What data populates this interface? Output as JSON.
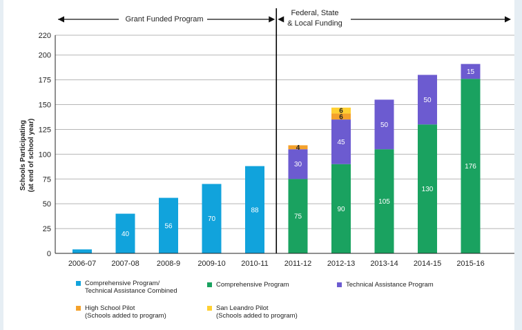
{
  "colors": {
    "comprehensive_ta_combined": "#11a3dc",
    "comprehensive_program": "#1aa260",
    "technical_assistance": "#6c5bd0",
    "high_school_pilot": "#f4a12b",
    "san_leandro_pilot": "#ffd032",
    "divider": "#000000",
    "grid": "#b5b5b5",
    "background_side": "#e6eef4"
  },
  "header": {
    "left_label": "Grant Funded Program",
    "right_label_line1": "Federal, State",
    "right_label_line2": "& Local Funding"
  },
  "legend": [
    {
      "key": "comprehensive_ta_combined",
      "label": "Comprehensive Program/\nTechnical Assistance Combined"
    },
    {
      "key": "comprehensive_program",
      "label": "Comprehensive Program"
    },
    {
      "key": "technical_assistance",
      "label": "Technical Assistance Program"
    },
    {
      "key": "high_school_pilot",
      "label": "High School Pilot\n(Schools added to program)"
    },
    {
      "key": "san_leandro_pilot",
      "label": "San Leandro Pilot\n(Schools added to program)"
    }
  ],
  "chart_data": {
    "type": "bar",
    "stacked": true,
    "ylabel_line1": "Schools Participating",
    "ylabel_line2": "(at end of school year)",
    "ylim": [
      0,
      220
    ],
    "yticks": [
      0,
      25,
      50,
      75,
      100,
      125,
      150,
      175,
      200,
      220
    ],
    "grid": true,
    "categories": [
      "2006-07",
      "2007-08",
      "2008-9",
      "2009-10",
      "2010-11",
      "2011-12",
      "2012-13",
      "2013-14",
      "2014-15",
      "2015-16"
    ],
    "series": [
      {
        "key": "comprehensive_ta_combined",
        "name": "Comprehensive Program/ Technical Assistance Combined",
        "values": [
          4,
          40,
          56,
          70,
          88,
          0,
          0,
          0,
          0,
          0
        ],
        "labels": [
          "",
          "40",
          "56",
          "70",
          "88",
          "",
          "",
          "",
          "",
          ""
        ]
      },
      {
        "key": "comprehensive_program",
        "name": "Comprehensive Program",
        "values": [
          0,
          0,
          0,
          0,
          0,
          75,
          90,
          105,
          130,
          176
        ],
        "labels": [
          "",
          "",
          "",
          "",
          "",
          "75",
          "90",
          "105",
          "130",
          "176"
        ]
      },
      {
        "key": "technical_assistance",
        "name": "Technical Assistance Program",
        "values": [
          0,
          0,
          0,
          0,
          0,
          30,
          45,
          50,
          50,
          15
        ],
        "labels": [
          "",
          "",
          "",
          "",
          "",
          "30",
          "45",
          "50",
          "50",
          "15"
        ]
      },
      {
        "key": "high_school_pilot",
        "name": "High School Pilot (Schools added to program)",
        "values": [
          0,
          0,
          0,
          0,
          0,
          4,
          6,
          0,
          0,
          0
        ],
        "labels": [
          "",
          "",
          "",
          "",
          "",
          "4",
          "6",
          "",
          "",
          ""
        ]
      },
      {
        "key": "san_leandro_pilot",
        "name": "San Leandro Pilot (Schools added to program)",
        "values": [
          0,
          0,
          0,
          0,
          0,
          0,
          6,
          0,
          0,
          0
        ],
        "labels": [
          "",
          "",
          "",
          "",
          "",
          "",
          "6",
          "",
          "",
          ""
        ]
      }
    ],
    "divider_between": [
      "2010-11",
      "2011-12"
    ]
  }
}
